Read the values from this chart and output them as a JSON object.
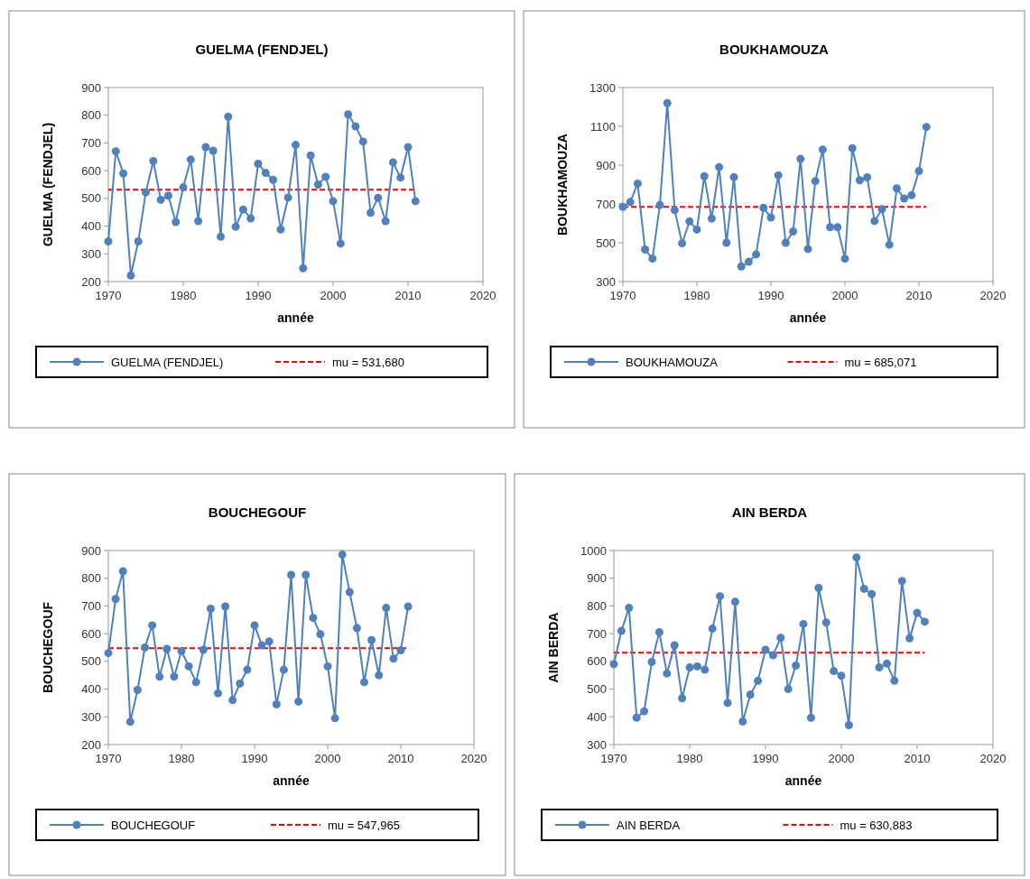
{
  "chart_data": [
    {
      "type": "line",
      "title": "GUELMA (FENDJEL)",
      "xlabel": "année",
      "ylabel": "GUELMA (FENDJEL)",
      "x": [
        1970,
        1971,
        1972,
        1973,
        1974,
        1975,
        1976,
        1977,
        1978,
        1979,
        1980,
        1981,
        1982,
        1983,
        1984,
        1985,
        1986,
        1987,
        1988,
        1989,
        1990,
        1991,
        1992,
        1993,
        1994,
        1995,
        1996,
        1997,
        1998,
        1999,
        2000,
        2001,
        2002,
        2003,
        2004,
        2005,
        2006,
        2007,
        2008,
        2009,
        2010,
        2011
      ],
      "xlim": [
        1970,
        2020
      ],
      "xticks": [
        1970,
        1980,
        1990,
        2000,
        2010,
        2020
      ],
      "ylim": [
        200,
        900
      ],
      "yticks": [
        200,
        300,
        400,
        500,
        600,
        700,
        800,
        900
      ],
      "marker": "circle",
      "legend": "bottom",
      "grid": false,
      "series": [
        {
          "name": "GUELMA (FENDJEL)",
          "color": "#4f81bd",
          "values": [
            345,
            670,
            590,
            222,
            345,
            522,
            635,
            495,
            510,
            415,
            540,
            640,
            418,
            685,
            672,
            362,
            795,
            398,
            460,
            428,
            625,
            592,
            567,
            388,
            503,
            693,
            248,
            655,
            550,
            578,
            490,
            337,
            803,
            760,
            705,
            448,
            502,
            418,
            630,
            575,
            685,
            490
          ]
        }
      ],
      "ref_lines": [
        {
          "axis": "y",
          "value": 531.68,
          "label": "mu = 531,680",
          "color": "#ff0000",
          "line_style": "dashed"
        }
      ]
    },
    {
      "type": "line",
      "title": "BOUKHAMOUZA",
      "xlabel": "année",
      "ylabel": "BOUKHAMOUZA",
      "x": [
        1970,
        1971,
        1972,
        1973,
        1974,
        1975,
        1976,
        1977,
        1978,
        1979,
        1980,
        1981,
        1982,
        1983,
        1984,
        1985,
        1986,
        1987,
        1988,
        1989,
        1990,
        1991,
        1992,
        1993,
        1994,
        1995,
        1996,
        1997,
        1998,
        1999,
        2000,
        2001,
        2002,
        2003,
        2004,
        2005,
        2006,
        2007,
        2008,
        2009,
        2010,
        2011
      ],
      "xlim": [
        1970,
        2020
      ],
      "xticks": [
        1970,
        1980,
        1990,
        2000,
        2010,
        2020
      ],
      "ylim": [
        300,
        1300
      ],
      "yticks": [
        300,
        500,
        700,
        900,
        1100,
        1300
      ],
      "marker": "circle",
      "legend": "bottom",
      "grid": false,
      "series": [
        {
          "name": "BOUKHAMOUZA",
          "color": "#4f81bd",
          "values": [
            685,
            710,
            805,
            465,
            418,
            695,
            1220,
            668,
            497,
            610,
            568,
            843,
            625,
            890,
            500,
            838,
            378,
            402,
            440,
            680,
            630,
            848,
            500,
            558,
            932,
            468,
            818,
            980,
            580,
            580,
            418,
            987,
            822,
            837,
            612,
            673,
            490,
            780,
            728,
            745,
            870,
            1097
          ]
        }
      ],
      "ref_lines": [
        {
          "axis": "y",
          "value": 685.071,
          "label": "mu = 685,071",
          "color": "#ff0000",
          "line_style": "dashed"
        }
      ]
    },
    {
      "type": "line",
      "title": "BOUCHEGOUF",
      "xlabel": "année",
      "ylabel": "BOUCHEGOUF",
      "x": [
        1970,
        1971,
        1972,
        1973,
        1974,
        1975,
        1976,
        1977,
        1978,
        1979,
        1980,
        1981,
        1982,
        1983,
        1984,
        1985,
        1986,
        1987,
        1988,
        1989,
        1990,
        1991,
        1992,
        1993,
        1994,
        1995,
        1996,
        1997,
        1998,
        1999,
        2000,
        2001,
        2002,
        2003,
        2004,
        2005,
        2006,
        2007,
        2008,
        2009,
        2010,
        2011
      ],
      "xlim": [
        1970,
        2020
      ],
      "xticks": [
        1970,
        1980,
        1990,
        2000,
        2010,
        2020
      ],
      "ylim": [
        200,
        900
      ],
      "yticks": [
        200,
        300,
        400,
        500,
        600,
        700,
        800,
        900
      ],
      "marker": "circle",
      "legend": "bottom",
      "grid": false,
      "series": [
        {
          "name": "BOUCHEGOUF",
          "color": "#4f81bd",
          "values": [
            530,
            725,
            825,
            282,
            397,
            550,
            630,
            445,
            545,
            445,
            537,
            482,
            425,
            542,
            690,
            385,
            698,
            360,
            420,
            470,
            630,
            558,
            572,
            345,
            470,
            812,
            355,
            812,
            657,
            598,
            482,
            295,
            885,
            750,
            620,
            425,
            577,
            450,
            693,
            510,
            540,
            698
          ]
        }
      ],
      "ref_lines": [
        {
          "axis": "y",
          "value": 547.965,
          "label": "mu = 547,965",
          "color": "#ff0000",
          "line_style": "dashed"
        }
      ]
    },
    {
      "type": "line",
      "title": "AIN BERDA",
      "xlabel": "année",
      "ylabel": "AIN BERDA",
      "x": [
        1970,
        1971,
        1972,
        1973,
        1974,
        1975,
        1976,
        1977,
        1978,
        1979,
        1980,
        1981,
        1982,
        1983,
        1984,
        1985,
        1986,
        1987,
        1988,
        1989,
        1990,
        1991,
        1992,
        1993,
        1994,
        1995,
        1996,
        1997,
        1998,
        1999,
        2000,
        2001,
        2002,
        2003,
        2004,
        2005,
        2006,
        2007,
        2008,
        2009,
        2010,
        2011
      ],
      "xlim": [
        1970,
        2020
      ],
      "xticks": [
        1970,
        1980,
        1990,
        2000,
        2010,
        2020
      ],
      "ylim": [
        300,
        1000
      ],
      "yticks": [
        300,
        400,
        500,
        600,
        700,
        800,
        900,
        1000
      ],
      "marker": "circle",
      "legend": "bottom",
      "grid": false,
      "series": [
        {
          "name": "AIN BERDA",
          "color": "#4f81bd",
          "values": [
            590,
            710,
            793,
            397,
            420,
            598,
            705,
            556,
            658,
            467,
            578,
            582,
            570,
            718,
            835,
            450,
            815,
            383,
            480,
            530,
            642,
            622,
            685,
            500,
            585,
            735,
            397,
            865,
            740,
            565,
            548,
            370,
            975,
            862,
            843,
            578,
            592,
            530,
            890,
            683,
            775,
            743
          ]
        }
      ],
      "ref_lines": [
        {
          "axis": "y",
          "value": 630.883,
          "label": "mu = 630,883",
          "color": "#ff0000",
          "line_style": "dashed"
        }
      ]
    }
  ]
}
